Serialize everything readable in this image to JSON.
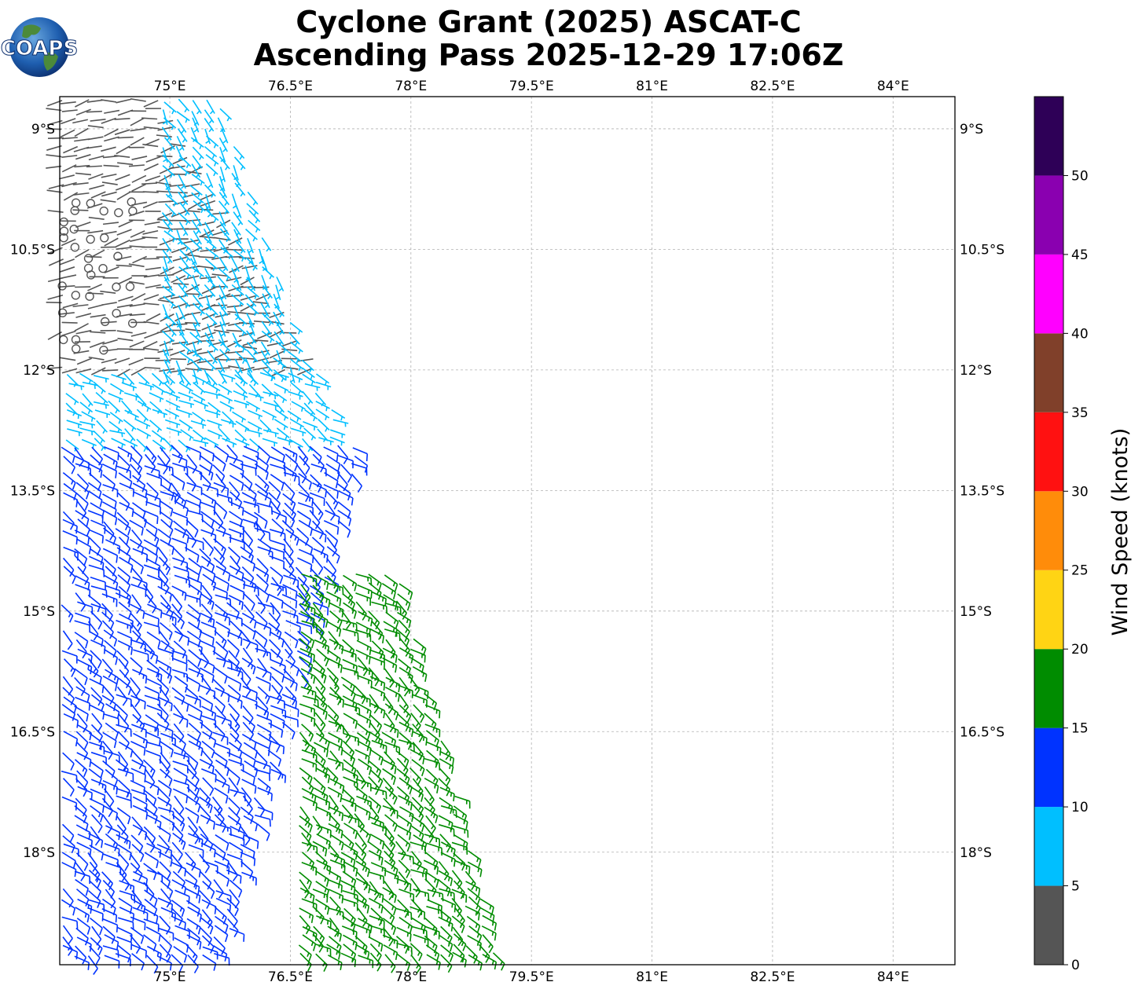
{
  "title_line1": "Cyclone Grant (2025) ASCAT-C",
  "title_line2": "Ascending Pass 2025-12-29 17:06Z",
  "logo_text": "COAPS",
  "map": {
    "lon_ticks": [
      "75°E",
      "76.5°E",
      "78°E",
      "79.5°E",
      "81°E",
      "82.5°E",
      "84°E"
    ],
    "lat_ticks": [
      "9°S",
      "10.5°S",
      "12°S",
      "13.5°S",
      "15°S",
      "16.5°S",
      "18°S"
    ],
    "lon_values": [
      75,
      76.5,
      78,
      79.5,
      81,
      82.5,
      84
    ],
    "lat_values": [
      -9,
      -10.5,
      -12,
      -13.5,
      -15,
      -16.5,
      -18
    ],
    "lon_range": [
      73.63,
      84.77
    ],
    "lat_range": [
      -19.4,
      -8.6
    ],
    "grid": "dashed"
  },
  "colorbar": {
    "label": "Wind Speed (knots)",
    "ticks": [
      "0",
      "5",
      "10",
      "15",
      "20",
      "25",
      "30",
      "35",
      "40",
      "45",
      "50"
    ],
    "bins": [
      {
        "min": 0,
        "max": 5,
        "color": "#555555"
      },
      {
        "min": 5,
        "max": 10,
        "color": "#00bfff"
      },
      {
        "min": 10,
        "max": 15,
        "color": "#0033ff"
      },
      {
        "min": 15,
        "max": 20,
        "color": "#008c00"
      },
      {
        "min": 20,
        "max": 25,
        "color": "#ffd414"
      },
      {
        "min": 25,
        "max": 30,
        "color": "#ff8c0a"
      },
      {
        "min": 30,
        "max": 35,
        "color": "#ff1111"
      },
      {
        "min": 35,
        "max": 40,
        "color": "#80402a"
      },
      {
        "min": 40,
        "max": 45,
        "color": "#ff00ff"
      },
      {
        "min": 45,
        "max": 50,
        "color": "#8a00b0"
      },
      {
        "min": 50,
        "max": 55,
        "color": "#2e0057"
      }
    ]
  },
  "wind_regions": [
    {
      "speed_kt": 2,
      "color": "#555555",
      "lat_range": [
        -12.0,
        -8.6
      ],
      "lon_start": 73.63,
      "lon_end_north": 74.9,
      "lon_end_south": 76.9,
      "dir_deg": 260,
      "calm_circles": true
    },
    {
      "speed_kt": 7,
      "color": "#00bfff",
      "lat_range": [
        -12.0,
        -8.6
      ],
      "lon_start": 74.9,
      "lon_end_north": 75.6,
      "lon_end_south": 76.7,
      "dir_deg": 145
    },
    {
      "speed_kt": 7,
      "color": "#00bfff",
      "lat_range": [
        -12.9,
        -12.0
      ],
      "lon_start": 73.7,
      "lon_end_north": 76.9,
      "lon_end_south": 77.1,
      "dir_deg": 120
    },
    {
      "speed_kt": 13,
      "color": "#0033ff",
      "lat_range": [
        -19.4,
        -12.9
      ],
      "lon_start": 73.63,
      "lon_end_north": 77.4,
      "lon_end_south": 75.6,
      "dir_deg": 125
    },
    {
      "speed_kt": 17,
      "color": "#008c00",
      "lat_range": [
        -19.4,
        -14.5
      ],
      "lon_start": 76.6,
      "lon_end_north": 77.8,
      "lon_end_south": 79.1,
      "dir_deg": 125
    }
  ]
}
